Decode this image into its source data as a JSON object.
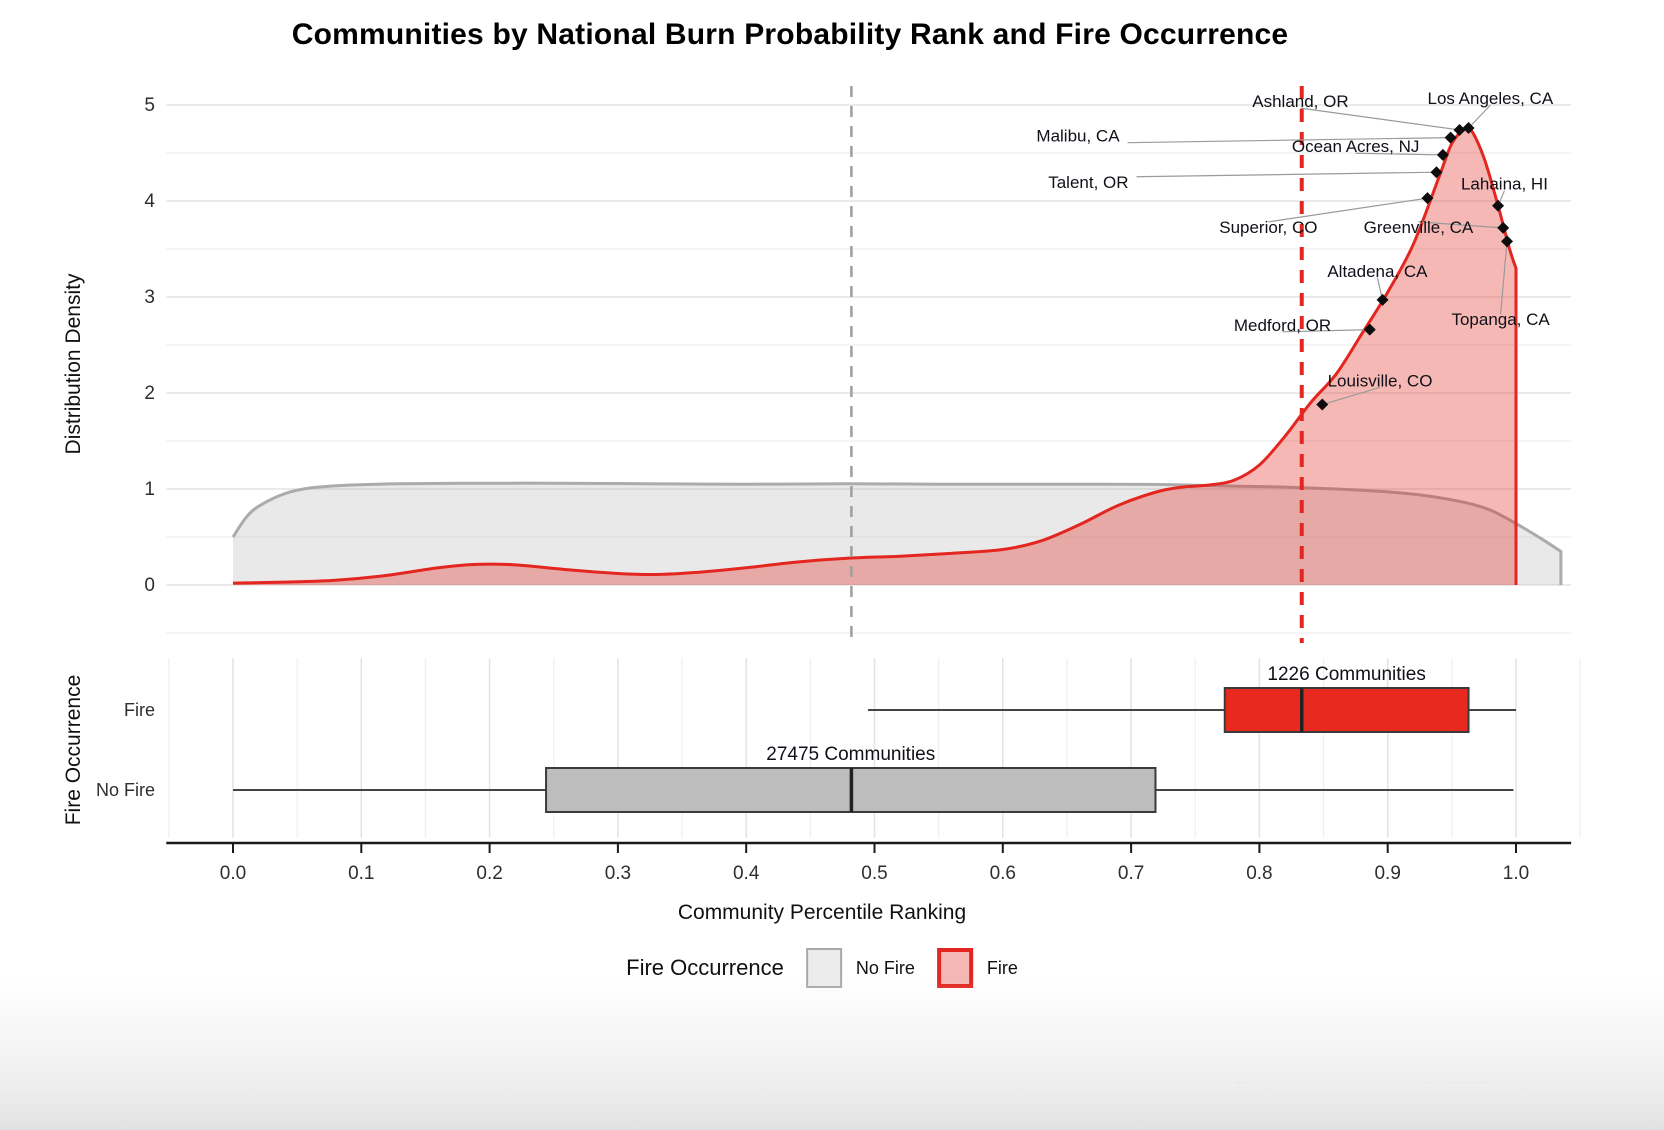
{
  "chart_data": {
    "type": "area",
    "title": "Communities by National Burn Probability Rank and Fire Occurrence",
    "xlabel": "Community Percentile Ranking",
    "footer": "Plot generated on July 03, 2025",
    "x_axis": {
      "ticks": [
        0.0,
        0.1,
        0.2,
        0.3,
        0.4,
        0.5,
        0.6,
        0.7,
        0.8,
        0.9,
        1.0
      ],
      "tick_labels": [
        "0.0",
        "0.1",
        "0.2",
        "0.3",
        "0.4",
        "0.5",
        "0.6",
        "0.7",
        "0.8",
        "0.9",
        "1.0"
      ],
      "minor_step": 0.05,
      "xlim": [
        -0.052,
        1.043
      ]
    },
    "density_panel": {
      "ylabel": "Distribution Density",
      "yticks": [
        0,
        1,
        2,
        3,
        4,
        5
      ],
      "ylim": [
        -0.62,
        5.2
      ],
      "grid": true,
      "series": [
        {
          "name": "No Fire",
          "line_color": "#ababab",
          "fill_color": "rgba(175,175,175,0.27)",
          "points": [
            [
              0,
              0.5
            ],
            [
              0.01,
              0.7
            ],
            [
              0.02,
              0.82
            ],
            [
              0.04,
              0.95
            ],
            [
              0.06,
              1.01
            ],
            [
              0.09,
              1.04
            ],
            [
              0.13,
              1.055
            ],
            [
              0.18,
              1.06
            ],
            [
              0.25,
              1.06
            ],
            [
              0.32,
              1.055
            ],
            [
              0.4,
              1.05
            ],
            [
              0.48,
              1.055
            ],
            [
              0.55,
              1.05
            ],
            [
              0.62,
              1.05
            ],
            [
              0.68,
              1.05
            ],
            [
              0.73,
              1.045
            ],
            [
              0.78,
              1.03
            ],
            [
              0.82,
              1.02
            ],
            [
              0.86,
              1.0
            ],
            [
              0.9,
              0.97
            ],
            [
              0.93,
              0.93
            ],
            [
              0.96,
              0.86
            ],
            [
              0.98,
              0.78
            ],
            [
              1.0,
              0.64
            ],
            [
              1.02,
              0.48
            ],
            [
              1.035,
              0.35
            ]
          ]
        },
        {
          "name": "Fire",
          "line_color": "#e3261f",
          "fill_color": "rgba(227,38,31,0.33)",
          "points": [
            [
              0,
              0.02
            ],
            [
              0.04,
              0.03
            ],
            [
              0.08,
              0.05
            ],
            [
              0.12,
              0.1
            ],
            [
              0.16,
              0.18
            ],
            [
              0.19,
              0.215
            ],
            [
              0.22,
              0.21
            ],
            [
              0.26,
              0.16
            ],
            [
              0.3,
              0.12
            ],
            [
              0.33,
              0.11
            ],
            [
              0.36,
              0.13
            ],
            [
              0.4,
              0.18
            ],
            [
              0.44,
              0.24
            ],
            [
              0.48,
              0.28
            ],
            [
              0.52,
              0.3
            ],
            [
              0.56,
              0.33
            ],
            [
              0.6,
              0.37
            ],
            [
              0.63,
              0.46
            ],
            [
              0.66,
              0.63
            ],
            [
              0.69,
              0.83
            ],
            [
              0.72,
              0.97
            ],
            [
              0.74,
              1.02
            ],
            [
              0.76,
              1.04
            ],
            [
              0.78,
              1.09
            ],
            [
              0.8,
              1.25
            ],
            [
              0.82,
              1.55
            ],
            [
              0.84,
              1.9
            ],
            [
              0.86,
              2.2
            ],
            [
              0.88,
              2.62
            ],
            [
              0.9,
              3.05
            ],
            [
              0.92,
              3.55
            ],
            [
              0.94,
              4.25
            ],
            [
              0.95,
              4.6
            ],
            [
              0.96,
              4.75
            ],
            [
              0.965,
              4.74
            ],
            [
              0.975,
              4.45
            ],
            [
              0.985,
              4.0
            ],
            [
              0.995,
              3.5
            ],
            [
              1.0,
              3.3
            ]
          ]
        }
      ],
      "vlines": [
        {
          "name": "no-fire-median-line",
          "x": 0.482,
          "color": "#9e9e9e",
          "width": 2.5,
          "dash": "11 9"
        },
        {
          "name": "fire-median-line",
          "x": 0.833,
          "color": "#e3261f",
          "width": 4,
          "dash": "13 10"
        }
      ],
      "annotations": [
        {
          "text": "Malibu, CA",
          "point": [
            0.949,
            4.66
          ],
          "label": [
            0.691,
            4.67
          ],
          "anchor": "end"
        },
        {
          "text": "Ashland, OR",
          "point": [
            0.956,
            4.74
          ],
          "label": [
            0.832,
            5.03
          ],
          "anchor": "middle"
        },
        {
          "text": "Los Angeles, CA",
          "point": [
            0.963,
            4.76
          ],
          "label": [
            0.98,
            5.06
          ],
          "anchor": "middle"
        },
        {
          "text": "Ocean Acres, NJ",
          "point": [
            0.943,
            4.48
          ],
          "label": [
            0.875,
            4.56
          ],
          "anchor": "middle"
        },
        {
          "text": "Talent, OR",
          "point": [
            0.938,
            4.3
          ],
          "label": [
            0.698,
            4.19
          ],
          "anchor": "end"
        },
        {
          "text": "Superior, CO",
          "point": [
            0.931,
            4.03
          ],
          "label": [
            0.807,
            3.72
          ],
          "anchor": "middle"
        },
        {
          "text": "Lahaina, HI",
          "point": [
            0.986,
            3.95
          ],
          "label": [
            0.991,
            4.17
          ],
          "anchor": "middle"
        },
        {
          "text": "Greenville, CA",
          "point": [
            0.99,
            3.72
          ],
          "label": [
            0.924,
            3.72
          ],
          "anchor": "middle"
        },
        {
          "text": "Altadena, CA",
          "point": [
            0.896,
            2.97
          ],
          "label": [
            0.892,
            3.26
          ],
          "anchor": "middle"
        },
        {
          "text": "Topanga, CA",
          "point": [
            0.993,
            3.58
          ],
          "label": [
            0.988,
            2.76
          ],
          "anchor": "middle"
        },
        {
          "text": "Medford, OR",
          "point": [
            0.886,
            2.66
          ],
          "label": [
            0.818,
            2.7
          ],
          "anchor": "middle"
        },
        {
          "text": "Louisville, CO",
          "point": [
            0.849,
            1.88
          ],
          "label": [
            0.894,
            2.12
          ],
          "anchor": "middle"
        }
      ]
    },
    "box_panel": {
      "ylabel": "Fire Occurrence",
      "rows": [
        {
          "group": "Fire",
          "count_label": "1226 Communities",
          "min": 0.495,
          "q1": 0.773,
          "median": 0.833,
          "q3": 0.963,
          "max": 1.0,
          "fill": "#e8291f",
          "stroke": "#3a3a3a"
        },
        {
          "group": "No Fire",
          "count_label": "27475 Communities",
          "min": 0.0,
          "q1": 0.244,
          "median": 0.482,
          "q3": 0.719,
          "max": 0.998,
          "fill": "#bdbdbd",
          "stroke": "#3a3a3a"
        }
      ]
    },
    "legend": {
      "title": "Fire Occurrence",
      "items": [
        {
          "label": "No Fire",
          "fill": "#ececec",
          "stroke": "#a8a8a8"
        },
        {
          "label": "Fire",
          "fill": "#f5b7b4",
          "stroke": "#e3261f"
        }
      ]
    },
    "colors": {
      "grid_major": "#e3e3e3",
      "grid_minor": "#efefef",
      "axis_line": "#1a1a1a",
      "tick_text": "#2e2e2e",
      "marker": "#0d0d0d",
      "leader": "#9a9a9a"
    }
  }
}
